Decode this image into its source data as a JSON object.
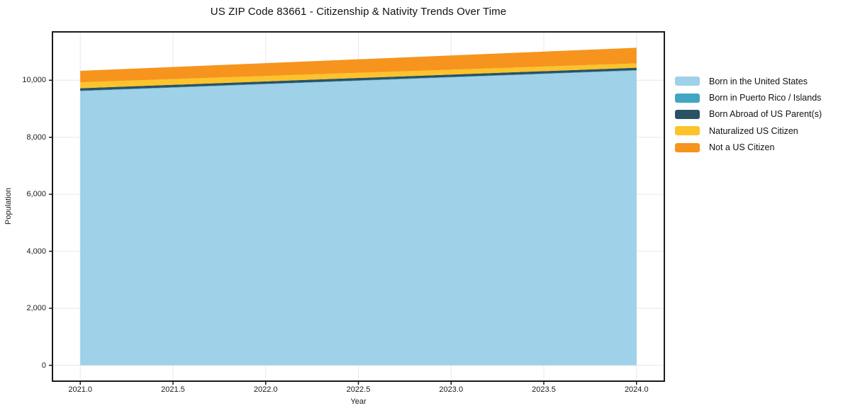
{
  "chart_data": {
    "type": "area",
    "stacked": true,
    "title": "US ZIP Code 83661 - Citizenship & Nativity Trends Over Time",
    "xlabel": "Year",
    "ylabel": "Population",
    "x": [
      2021,
      2022,
      2023,
      2024
    ],
    "series": [
      {
        "name": "Born in the United States",
        "color": "#9fd1e8",
        "values": [
          9620,
          9860,
          10100,
          10340
        ]
      },
      {
        "name": "Born in Puerto Rico / Islands",
        "color": "#41a6c4",
        "values": [
          15,
          15,
          15,
          15
        ]
      },
      {
        "name": "Born Abroad of US Parent(s)",
        "color": "#2a5266",
        "values": [
          85,
          85,
          85,
          85
        ]
      },
      {
        "name": "Naturalized US Citizen",
        "color": "#fcc32b",
        "values": [
          210,
          190,
          170,
          150
        ]
      },
      {
        "name": "Not a US Citizen",
        "color": "#f7941e",
        "values": [
          400,
          450,
          500,
          550
        ]
      }
    ],
    "totals": [
      10330,
      10600,
      10870,
      11140
    ],
    "xlim": [
      2020.85,
      2024.15
    ],
    "ylim": [
      -557,
      11697
    ],
    "xticks": [
      2021.0,
      2021.5,
      2022.0,
      2022.5,
      2023.0,
      2023.5,
      2024.0
    ],
    "xtick_labels": [
      "2021.0",
      "2021.5",
      "2022.0",
      "2022.5",
      "2023.0",
      "2023.5",
      "2024.0"
    ],
    "yticks": [
      0,
      2000,
      4000,
      6000,
      8000,
      10000
    ],
    "ytick_labels": [
      "0",
      "2,000",
      "4,000",
      "6,000",
      "8,000",
      "10,000"
    ],
    "grid": true,
    "legend_position": "right of plot"
  },
  "style_colors": {
    "grid": "#e8e8e8",
    "spine": "#1a1a1a",
    "background": "#ffffff"
  }
}
